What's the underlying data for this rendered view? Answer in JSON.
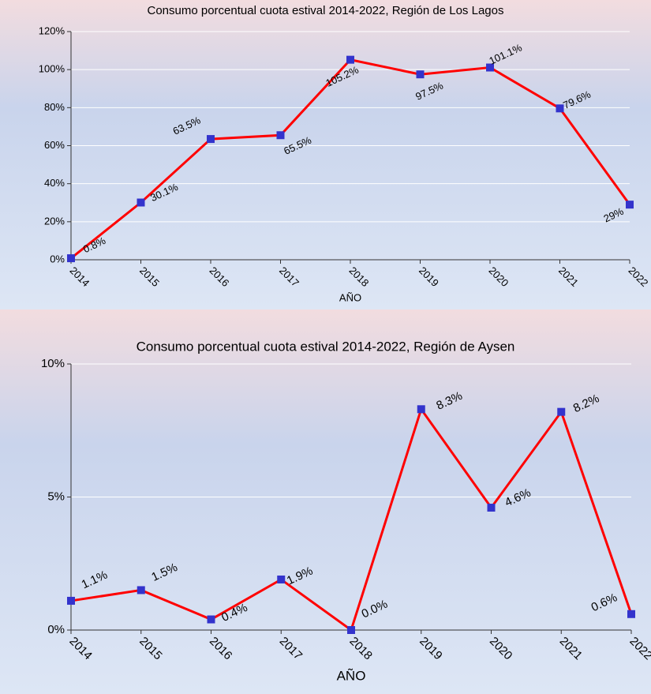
{
  "chart_data": [
    {
      "type": "line",
      "title": "Consumo porcentual cuota estival 2014-2022, Región de Los Lagos",
      "x_label": "AÑO",
      "categories": [
        "2014",
        "2015",
        "2016",
        "2017",
        "2018",
        "2019",
        "2020",
        "2021",
        "2022"
      ],
      "values": [
        0.8,
        30.1,
        63.5,
        65.5,
        105.2,
        97.5,
        101.1,
        79.6,
        29
      ],
      "value_labels": [
        "0.8%",
        "30.1%",
        "63.5%",
        "65.5%",
        "105.2%",
        "97.5%",
        "101.1%",
        "79.6%",
        "29%"
      ],
      "color": "#ff0000",
      "marker_color": "#3333cc",
      "ylim": [
        0,
        120
      ],
      "yticks": [
        {
          "value": 0,
          "label": "0%"
        },
        {
          "value": 20,
          "label": "20%"
        },
        {
          "value": 40,
          "label": "40%"
        },
        {
          "value": 60,
          "label": "60%"
        },
        {
          "value": 80,
          "label": "80%"
        },
        {
          "value": 100,
          "label": "100%"
        },
        {
          "value": 120,
          "label": "120%"
        }
      ],
      "grid": true
    },
    {
      "type": "line",
      "title": "Consumo porcentual cuota estival 2014-2022, Región de Aysen",
      "x_label": "AÑO",
      "categories": [
        "2014",
        "2015",
        "2016",
        "2017",
        "2018",
        "2019",
        "2020",
        "2021",
        "2022"
      ],
      "values": [
        1.1,
        1.5,
        0.4,
        1.9,
        0.0,
        8.3,
        4.6,
        8.2,
        0.6
      ],
      "value_labels": [
        "1.1%",
        "1.5%",
        "0.4%",
        "1.9%",
        "0.0%",
        "8.3%",
        "4.6%",
        "8.2%",
        "0.6%"
      ],
      "color": "#ff0000",
      "marker_color": "#3333cc",
      "ylim": [
        0,
        10
      ],
      "yticks": [
        {
          "value": 0,
          "label": "0%"
        },
        {
          "value": 5,
          "label": "5%"
        },
        {
          "value": 10,
          "label": "10%"
        }
      ],
      "grid": true
    }
  ]
}
